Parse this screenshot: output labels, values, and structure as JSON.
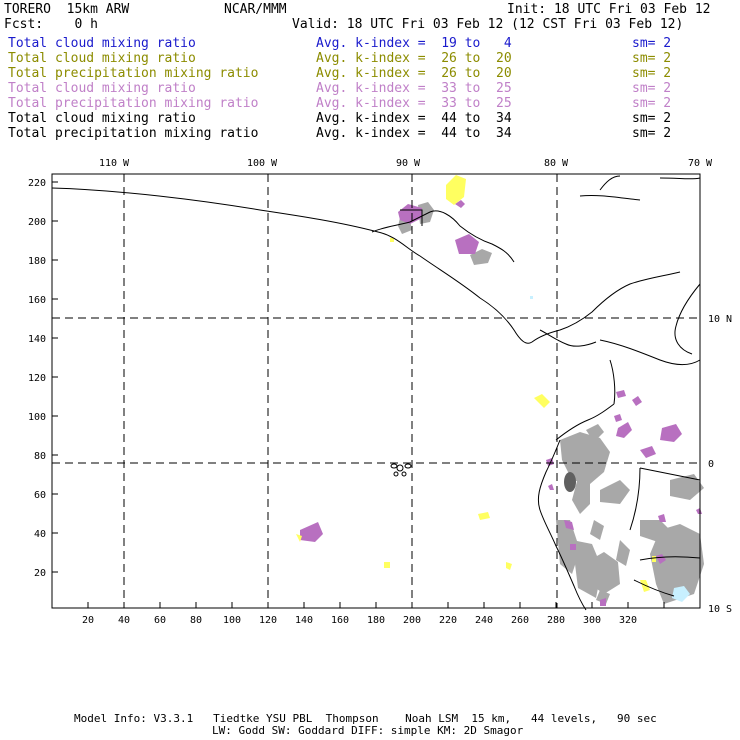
{
  "header": {
    "model": "TORERO  15km ARW",
    "center": "NCAR/MMM",
    "init": "Init: 18 UTC Fri 03 Feb 12",
    "fcst": "Fcst:    0 h",
    "valid": "Valid: 18 UTC Fri 03 Feb 12 (12 CST Fri 03 Feb 12)"
  },
  "legend": [
    {
      "label": "Total cloud mixing ratio",
      "kidx": "Avg. k-index =  19 to   4",
      "sm": "sm= 2",
      "color": "#1a1acc"
    },
    {
      "label": "Total cloud mixing ratio",
      "kidx": "Avg. k-index =  26 to  20",
      "sm": "sm= 2",
      "color": "#8c8c00"
    },
    {
      "label": "Total precipitation mixing ratio",
      "kidx": "Avg. k-index =  26 to  20",
      "sm": "sm= 2",
      "color": "#8c8c00"
    },
    {
      "label": "Total cloud mixing ratio",
      "kidx": "Avg. k-index =  33 to  25",
      "sm": "sm= 2",
      "color": "#c080c8"
    },
    {
      "label": "Total precipitation mixing ratio",
      "kidx": "Avg. k-index =  33 to  25",
      "sm": "sm= 2",
      "color": "#c080c8"
    },
    {
      "label": "Total cloud mixing ratio",
      "kidx": "Avg. k-index =  44 to  34",
      "sm": "sm= 2",
      "color": "#000000"
    },
    {
      "label": "Total precipitation mixing ratio",
      "kidx": "Avg. k-index =  44 to  34",
      "sm": "sm= 2",
      "color": "#000000"
    }
  ],
  "map": {
    "lon_labels": [
      "110 W",
      "100 W",
      "90 W",
      "80 W",
      "70 W"
    ],
    "lat_labels": [
      "10 N",
      "0",
      "10 S"
    ],
    "y_ticks": [
      "20",
      "40",
      "60",
      "80",
      "100",
      "120",
      "140",
      "160",
      "180",
      "200",
      "220"
    ],
    "x_ticks": [
      "20",
      "40",
      "60",
      "80",
      "100",
      "120",
      "140",
      "160",
      "180",
      "200",
      "220",
      "240",
      "260",
      "280",
      "300",
      "320"
    ],
    "colors": {
      "gray": "#a8a8a8",
      "purple": "#b870c0",
      "yellow": "#ffff60",
      "cyan": "#c8f0ff"
    }
  },
  "footer": {
    "line1": "Model Info: V3.3.1   Tiedtke YSU PBL  Thompson    Noah LSM  15 km,   44 levels,   90 sec",
    "line2": "LW: Godd SW: Goddard DIFF: simple KM: 2D Smagor"
  }
}
